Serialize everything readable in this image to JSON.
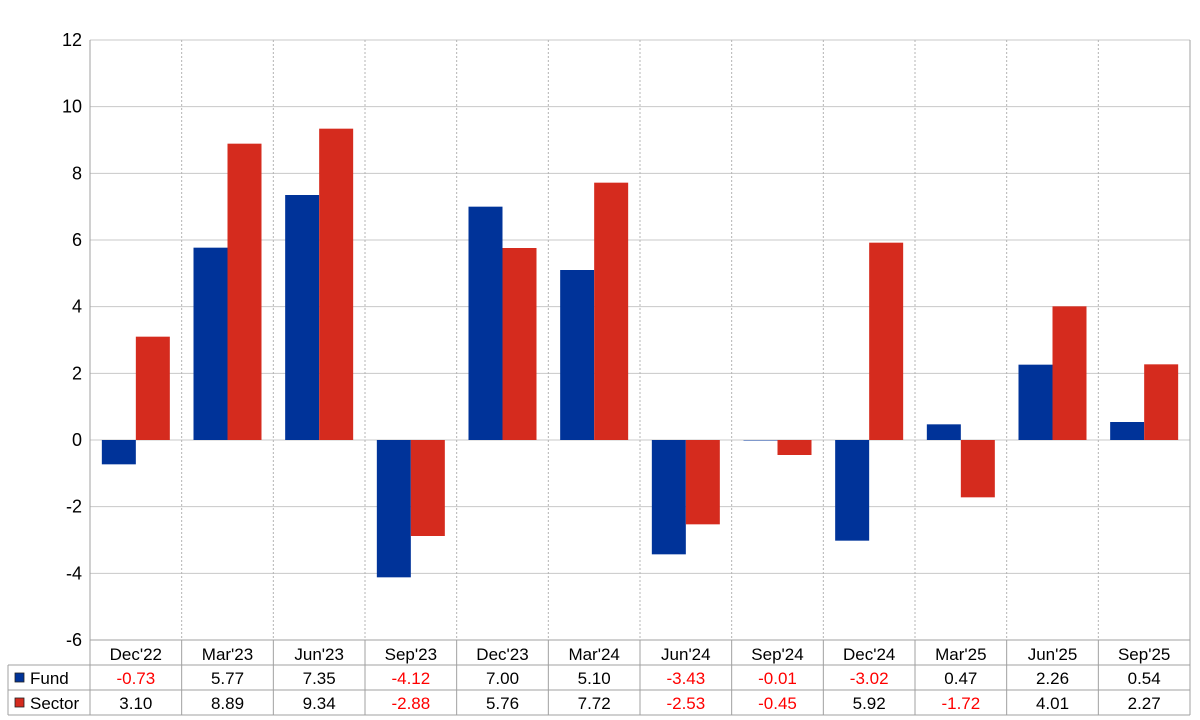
{
  "chart_data": {
    "type": "bar",
    "categories": [
      "Dec'22",
      "Mar'23",
      "Jun'23",
      "Sep'23",
      "Dec'23",
      "Mar'24",
      "Jun'24",
      "Sep'24",
      "Dec'24",
      "Mar'25",
      "Jun'25",
      "Sep'25"
    ],
    "series": [
      {
        "name": "Fund",
        "color": "#003399",
        "values": [
          -0.73,
          5.77,
          7.35,
          -4.12,
          7.0,
          5.1,
          -3.43,
          -0.01,
          -3.02,
          0.47,
          2.26,
          0.54
        ],
        "labels": [
          "-0.73",
          "5.77",
          "7.35",
          "-4.12",
          "7.00",
          "5.10",
          "-3.43",
          "-0.01",
          "-3.02",
          "0.47",
          "2.26",
          "0.54"
        ]
      },
      {
        "name": "Sector",
        "color": "#d52b1e",
        "values": [
          3.1,
          8.89,
          9.34,
          -2.88,
          5.76,
          7.72,
          -2.53,
          -0.45,
          5.92,
          -1.72,
          4.01,
          2.27
        ],
        "labels": [
          "3.10",
          "8.89",
          "9.34",
          "-2.88",
          "5.76",
          "7.72",
          "-2.53",
          "-0.45",
          "5.92",
          "-1.72",
          "4.01",
          "2.27"
        ]
      }
    ],
    "y_ticks": [
      "12",
      "10",
      "8",
      "6",
      "4",
      "2",
      "0",
      "-2",
      "-4",
      "-6"
    ],
    "ylim": [
      -6,
      12
    ],
    "grid": true,
    "legend": "data-table-below",
    "negative_value_color": "#ff0000",
    "positive_value_color": "#000000"
  }
}
